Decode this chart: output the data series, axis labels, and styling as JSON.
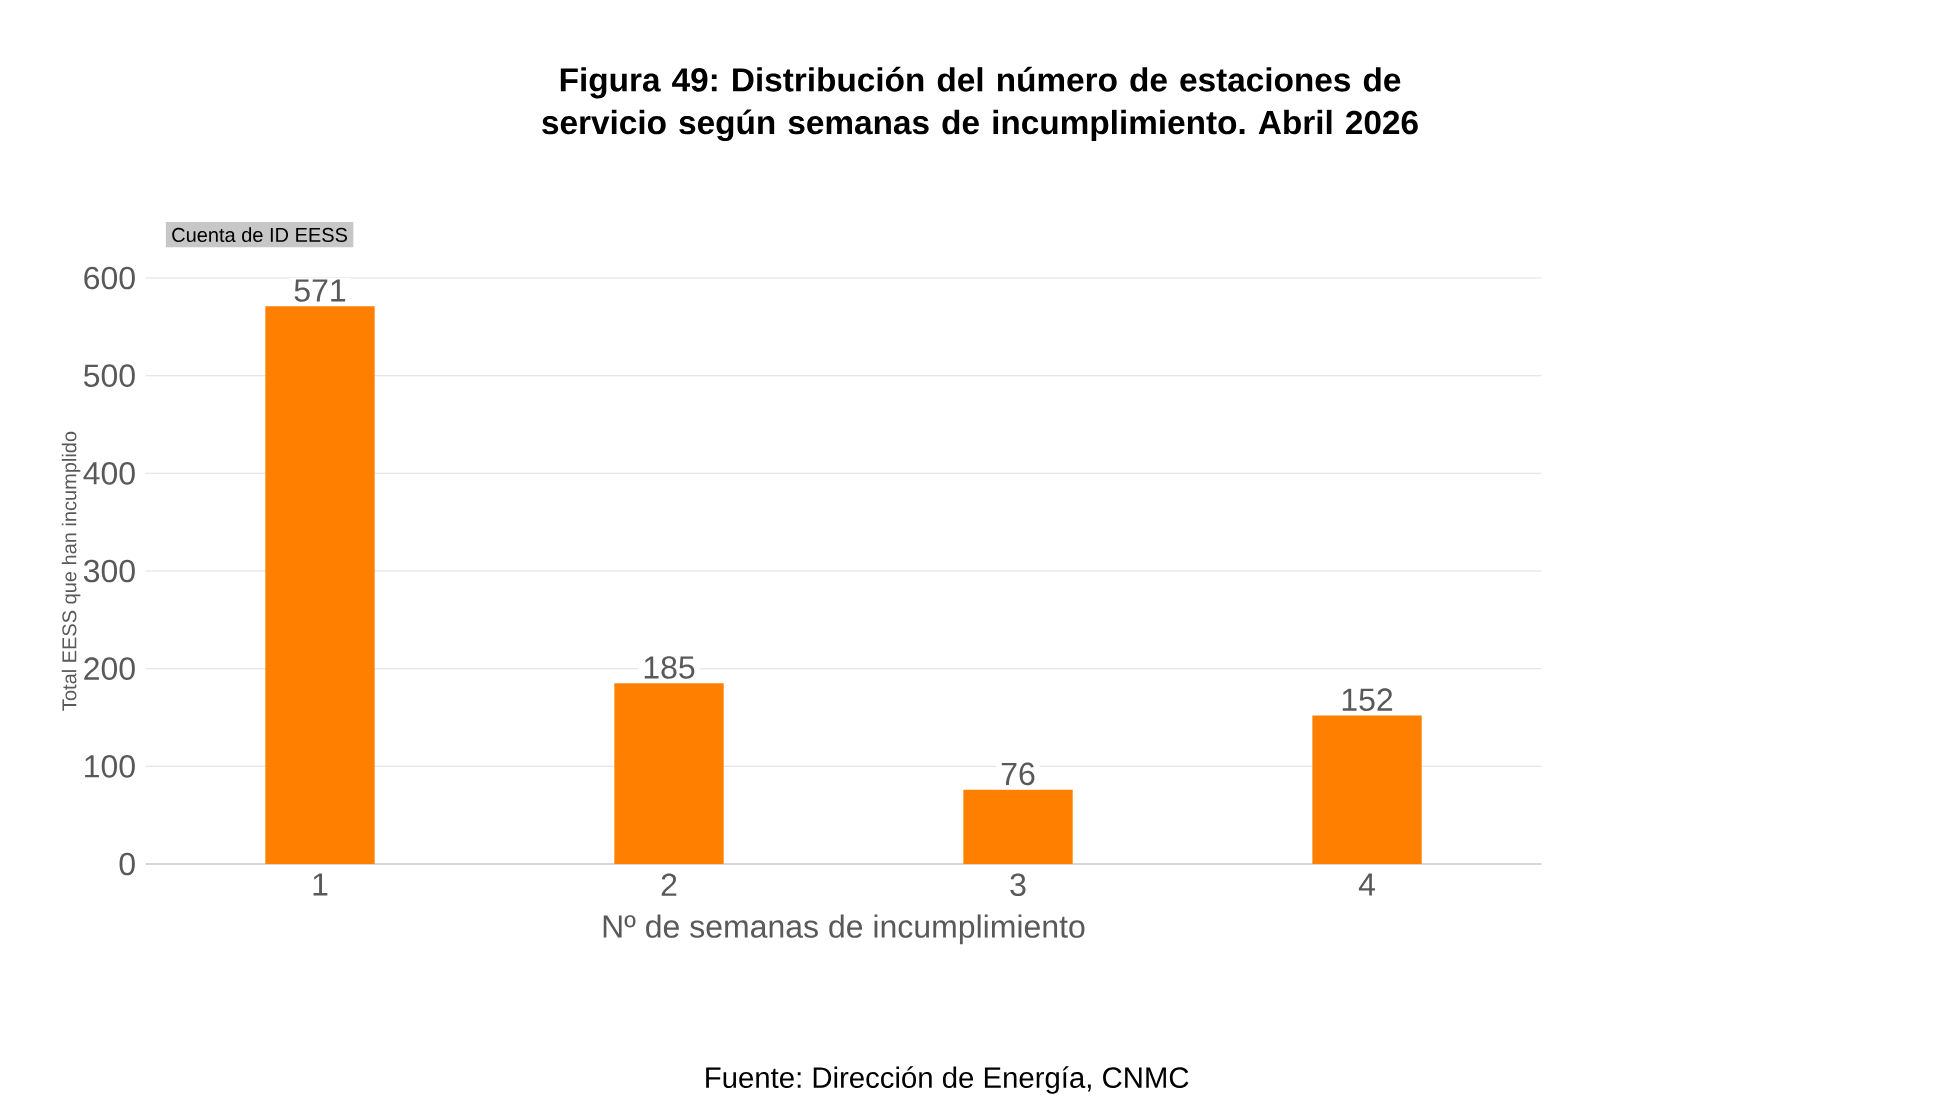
{
  "chart_data": {
    "type": "bar",
    "title": "Figura 49: Distribución del número de estaciones de servicio según semanas de incumplimiento. Abril 2026",
    "xlabel": "Nº de semanas de incumplimiento",
    "ylabel": "Total EESS que han incumplido",
    "categories": [
      "1",
      "2",
      "3",
      "4"
    ],
    "values": [
      571,
      185,
      76,
      152
    ],
    "color": "#ff7f00",
    "ylim": [
      0,
      600
    ],
    "yticks": [
      0,
      100,
      200,
      300,
      400,
      500,
      600
    ],
    "grid": "y",
    "data_labels": true,
    "annotations": [
      "Cuenta de ID EESS",
      "Fuente: Dirección de Energía, CNMC"
    ]
  }
}
